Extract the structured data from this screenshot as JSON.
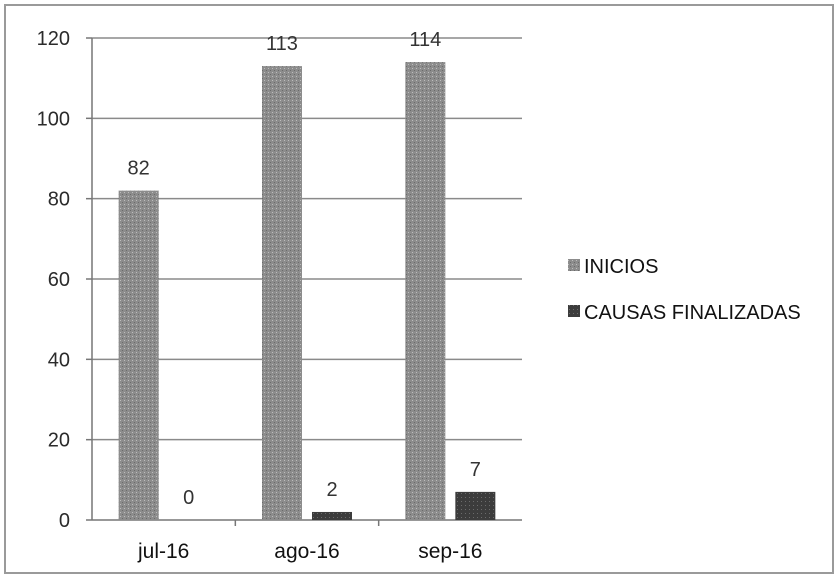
{
  "chart_data": {
    "type": "bar",
    "categories": [
      "jul-16",
      "ago-16",
      "sep-16"
    ],
    "series": [
      {
        "name": "INICIOS",
        "values": [
          82,
          113,
          114
        ],
        "color": "#8a8a8a"
      },
      {
        "name": "CAUSAS FINALIZADAS",
        "values": [
          0,
          2,
          7
        ],
        "color": "#3a3a3a"
      }
    ],
    "ylim": [
      0,
      120
    ],
    "yticks": [
      0,
      20,
      40,
      60,
      80,
      100,
      120
    ],
    "grid": true,
    "legend_position": "right",
    "title": "",
    "xlabel": "",
    "ylabel": ""
  }
}
